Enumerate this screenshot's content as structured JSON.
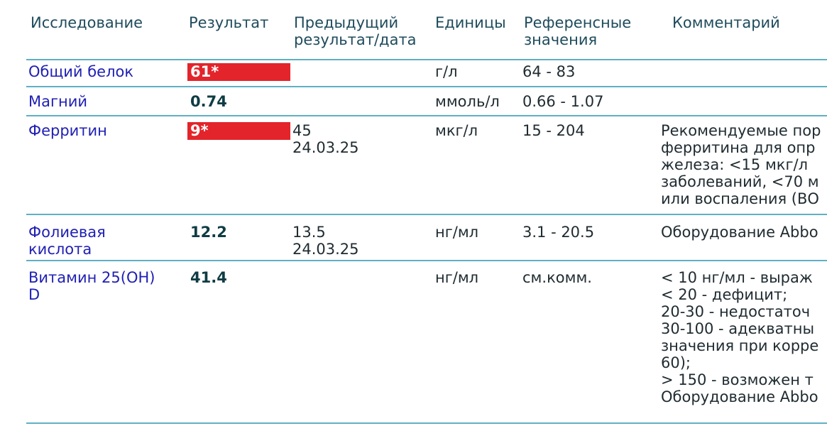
{
  "columns": {
    "test": "Исследование",
    "result": "Результат",
    "previous": "Предыдущий\nрезультат/дата",
    "units": "Единицы",
    "reference": "Референсные\nзначения",
    "comment": "Комментарий"
  },
  "rows": [
    {
      "name": "Общий белок",
      "result": "61*",
      "flag": true,
      "previous": "",
      "units": "г/л",
      "reference": "64 - 83",
      "comment": ""
    },
    {
      "name": "Магний",
      "result": "0.74",
      "flag": false,
      "previous": "",
      "units": "ммоль/л",
      "reference": "0.66 - 1.07",
      "comment": ""
    },
    {
      "name": "Ферритин",
      "result": "9*",
      "flag": true,
      "previous": "45\n24.03.25",
      "units": "мкг/л",
      "reference": "15 - 204",
      "comment": "Рекомендуемые пор\nферритина для опр\nжелеза: <15 мкг/л\nзаболеваний, <70 м\nили воспаления (ВО"
    },
    {
      "name": "Фолиевая\nкислота",
      "result": "12.2",
      "flag": false,
      "previous": "13.5\n24.03.25",
      "units": "нг/мл",
      "reference": "3.1 - 20.5",
      "comment": "Оборудование Abbo"
    },
    {
      "name": "Витамин 25(OH)\nD",
      "result": "41.4",
      "flag": false,
      "previous": "",
      "units": "нг/мл",
      "reference": "см.комм.",
      "comment": "< 10 нг/мл - выраж\n< 20 - дефицит;\n20-30 - недостаточ\n30-100 - адекватны\nзначения при корре\n60);\n> 150 - возможен т\nОборудование Abbo"
    }
  ],
  "colors": {
    "flag": "#e3242b",
    "rule": "#5fb0c4",
    "name": "#1f1fb4"
  }
}
